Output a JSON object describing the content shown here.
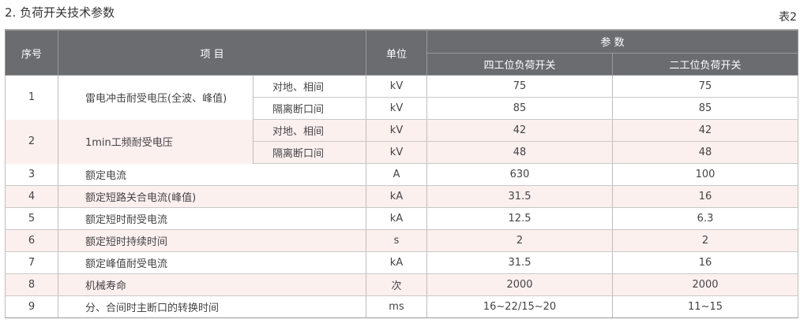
{
  "title": "2. 负荷开关技术参数",
  "table_no": "表2",
  "header": {
    "no": "序号",
    "item": "项 目",
    "unit": "单位",
    "params": "参 数",
    "four": "四工位负荷开关",
    "two": "二工位负荷开关"
  },
  "group_rows": [
    {
      "no": "1",
      "item": "雷电冲击耐受电压(全波、峰值)",
      "subs": [
        {
          "label": "对地、相间",
          "unit": "kV",
          "four": "75",
          "two": "75"
        },
        {
          "label": "隔离断口间",
          "unit": "kV",
          "four": "85",
          "two": "85"
        }
      ]
    },
    {
      "no": "2",
      "item": "1min工频耐受电压",
      "subs": [
        {
          "label": "对地、相间",
          "unit": "kV",
          "four": "42",
          "two": "42"
        },
        {
          "label": "隔离断口间",
          "unit": "kV",
          "four": "48",
          "two": "48"
        }
      ]
    }
  ],
  "rows": [
    {
      "no": "3",
      "item": "额定电流",
      "unit": "A",
      "four": "630",
      "two": "100"
    },
    {
      "no": "4",
      "item": "额定短路关合电流(峰值)",
      "unit": "kA",
      "four": "31.5",
      "two": "16"
    },
    {
      "no": "5",
      "item": "额定短时耐受电流",
      "unit": "kA",
      "four": "12.5",
      "two": "6.3"
    },
    {
      "no": "6",
      "item": "额定短时持续时间",
      "unit": "s",
      "four": "2",
      "two": "2"
    },
    {
      "no": "7",
      "item": "额定峰值耐受电流",
      "unit": "kA",
      "four": "31.5",
      "two": "16"
    },
    {
      "no": "8",
      "item": "机械寿命",
      "unit": "次",
      "four": "2000",
      "two": "2000"
    },
    {
      "no": "9",
      "item": "分、合间时主断口的转换时间",
      "unit": "ms",
      "four": "16~22/15~20",
      "two": "11~15"
    }
  ]
}
